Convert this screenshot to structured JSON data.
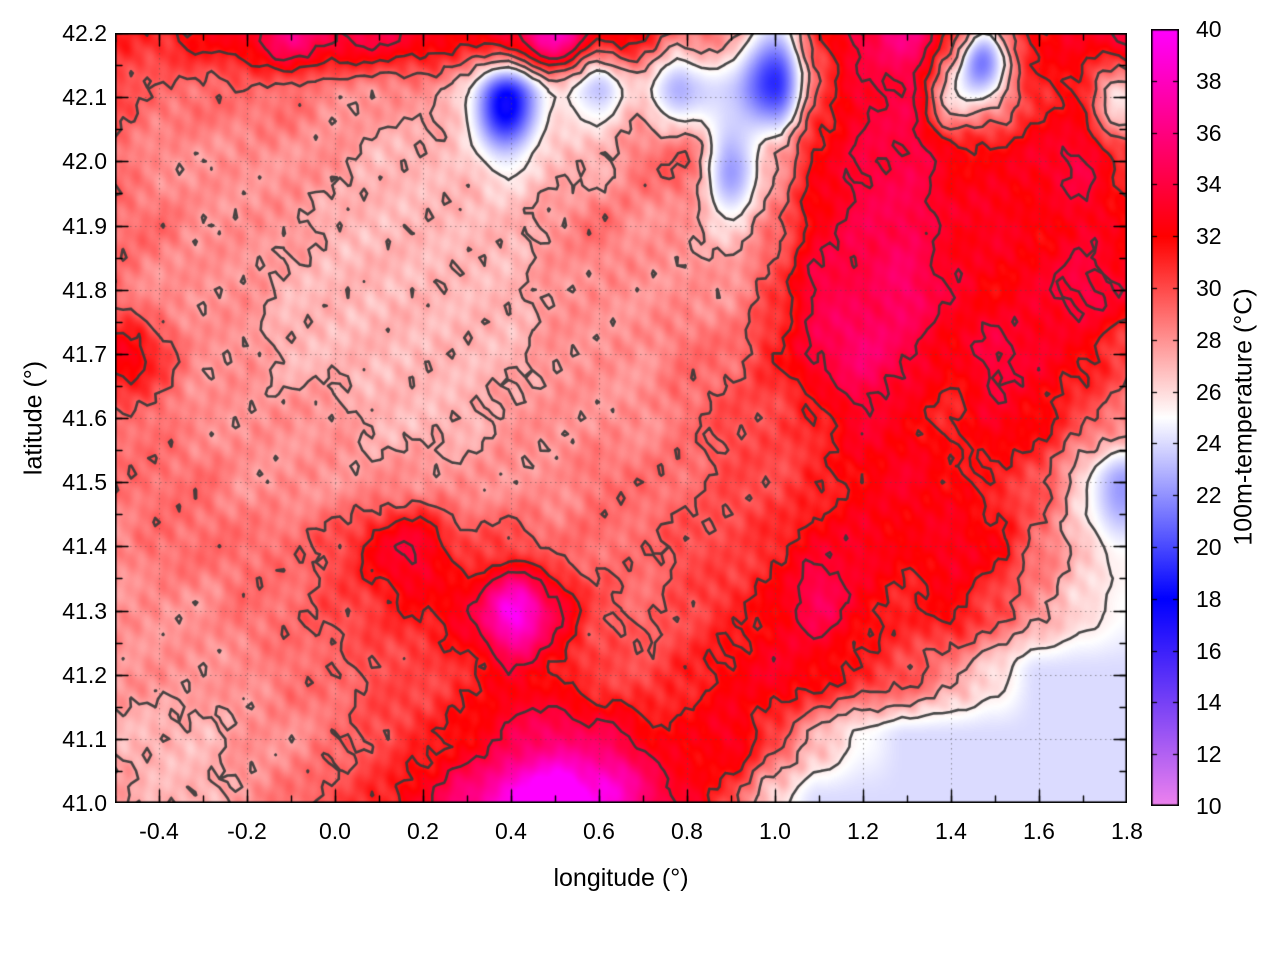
{
  "figure": {
    "background": "#ffffff",
    "border_color": "#000000"
  },
  "axes": {
    "xlabel": "longitude (°)",
    "ylabel": "latitude (°)",
    "xrange": [
      -0.5,
      1.8
    ],
    "yrange": [
      41.0,
      42.2
    ],
    "xtick_values": [
      -0.4,
      -0.2,
      0.0,
      0.2,
      0.4,
      0.6,
      0.8,
      1.0,
      1.2,
      1.4,
      1.6,
      1.8
    ],
    "xtick_labels": [
      "-0.4",
      "-0.2",
      "0.0",
      "0.2",
      "0.4",
      "0.6",
      "0.8",
      "1.0",
      "1.2",
      "1.4",
      "1.6",
      "1.8"
    ],
    "ytick_values": [
      42.2,
      42.1,
      42.0,
      41.9,
      41.8,
      41.7,
      41.6,
      41.5,
      41.4,
      41.3,
      41.2,
      41.1,
      41.0
    ],
    "ytick_labels": [
      "42.2",
      "42.1",
      "42.0",
      "41.9",
      "41.8",
      "41.7",
      "41.6",
      "41.5",
      "41.4",
      "41.3",
      "41.2",
      "41.1",
      "41.0"
    ],
    "x_minor_step": 0.1,
    "y_minor_step": 0.05,
    "grid": "dotted",
    "grid_color": "#787878"
  },
  "colorbar": {
    "label": "100m-temperature (°C)",
    "range": [
      10,
      40
    ],
    "tick_values": [
      10,
      12,
      14,
      16,
      18,
      20,
      22,
      24,
      26,
      28,
      30,
      32,
      34,
      36,
      38,
      40
    ],
    "tick_labels": [
      "10",
      "12",
      "14",
      "16",
      "18",
      "20",
      "22",
      "24",
      "26",
      "28",
      "30",
      "32",
      "34",
      "36",
      "38",
      "40"
    ],
    "palette": [
      {
        "value": 10,
        "color": "#ee82ee"
      },
      {
        "value": 18,
        "color": "#0000ff"
      },
      {
        "value": 25,
        "color": "#ffffff"
      },
      {
        "value": 32,
        "color": "#ff0000"
      },
      {
        "value": 40,
        "color": "#ff00ff"
      }
    ]
  },
  "chart_data": {
    "type": "heatmap",
    "title": "",
    "xlabel": "longitude (°)",
    "ylabel": "latitude (°)",
    "value_label": "100m-temperature (°C)",
    "value_range": [
      10,
      40
    ],
    "x": [
      -0.5,
      -0.4,
      -0.3,
      -0.2,
      -0.1,
      0.0,
      0.1,
      0.2,
      0.3,
      0.4,
      0.5,
      0.6,
      0.7,
      0.8,
      0.9,
      1.0,
      1.1,
      1.2,
      1.3,
      1.4,
      1.5,
      1.6,
      1.7,
      1.8
    ],
    "y": [
      42.2,
      42.1,
      42.0,
      41.9,
      41.8,
      41.7,
      41.6,
      41.5,
      41.4,
      41.3,
      41.2,
      41.1,
      41.0
    ],
    "values": [
      [
        31,
        31,
        32,
        33,
        36,
        34,
        34,
        33,
        32,
        34,
        38,
        34,
        33,
        31,
        29,
        28,
        32,
        34,
        36,
        32,
        30,
        32,
        33,
        35
      ],
      [
        30,
        29,
        29,
        29,
        29,
        28,
        28,
        28,
        27,
        23,
        26,
        25,
        28,
        26,
        25,
        24,
        31,
        33,
        33,
        26,
        28,
        31,
        33,
        29
      ],
      [
        29,
        28,
        28,
        28,
        28,
        28,
        27,
        27,
        27,
        26,
        27,
        27,
        29,
        30,
        25,
        28,
        32,
        33,
        32,
        31,
        32,
        33,
        34,
        31
      ],
      [
        29,
        29,
        28,
        28,
        28,
        27,
        27,
        27,
        27,
        27,
        28,
        29,
        28,
        28,
        27,
        29,
        32,
        33,
        33,
        32,
        33,
        32,
        33,
        32
      ],
      [
        29,
        28,
        28,
        28,
        27,
        27,
        27,
        27,
        27,
        27,
        28,
        28,
        28,
        28,
        28,
        30,
        33,
        32,
        34,
        33,
        32,
        33,
        34,
        33
      ],
      [
        31,
        30,
        28,
        28,
        27,
        27,
        27,
        27,
        27,
        27,
        28,
        28,
        28,
        29,
        29,
        31,
        33,
        34,
        33,
        32,
        34,
        33,
        32,
        30
      ],
      [
        29,
        29,
        28,
        28,
        28,
        28,
        27,
        27,
        27,
        28,
        28,
        28,
        28,
        29,
        30,
        30,
        31,
        33,
        32,
        31,
        33,
        32,
        30,
        29
      ],
      [
        29,
        29,
        29,
        28,
        28,
        28,
        28,
        28,
        28,
        28,
        28,
        29,
        29,
        29,
        30,
        30,
        31,
        32,
        33,
        32,
        31,
        30,
        27,
        25
      ],
      [
        28,
        29,
        29,
        29,
        29,
        30,
        31,
        32,
        30,
        30,
        29,
        29,
        29,
        30,
        30,
        31,
        32,
        33,
        32,
        33,
        32,
        29,
        27,
        26
      ],
      [
        28,
        28,
        28,
        29,
        29,
        30,
        30,
        31,
        33,
        36,
        33,
        30,
        29,
        30,
        31,
        32,
        33,
        32,
        31,
        32,
        30,
        28,
        26,
        25
      ],
      [
        28,
        28,
        28,
        28,
        29,
        29,
        30,
        30,
        31,
        32,
        31,
        30,
        30,
        31,
        32,
        33,
        32,
        31,
        30,
        28,
        26,
        24,
        24,
        24
      ],
      [
        27,
        27,
        27,
        28,
        28,
        29,
        30,
        31,
        32,
        33,
        33,
        32,
        31,
        32,
        33,
        30,
        27,
        25,
        24,
        24,
        24,
        24,
        24,
        24
      ],
      [
        28,
        27,
        27,
        28,
        29,
        30,
        31,
        33,
        36,
        38,
        38,
        36,
        34,
        33,
        30,
        26,
        24,
        24,
        24,
        24,
        24,
        24,
        24,
        24
      ]
    ],
    "anomaly_spots": [
      {
        "lon": 0.38,
        "lat": 42.08,
        "sigma": 0.05,
        "delta": -6
      },
      {
        "lon": 1.0,
        "lat": 42.15,
        "sigma": 0.06,
        "delta": -6
      },
      {
        "lon": 1.47,
        "lat": 42.16,
        "sigma": 0.04,
        "delta": -8
      },
      {
        "lon": 0.77,
        "lat": 42.14,
        "sigma": 0.06,
        "delta": -4
      },
      {
        "lon": 0.6,
        "lat": 42.15,
        "sigma": 0.04,
        "delta": -3
      },
      {
        "lon": 0.9,
        "lat": 41.97,
        "sigma": 0.05,
        "delta": -3
      },
      {
        "lon": 1.76,
        "lat": 42.1,
        "sigma": 0.05,
        "delta": -4
      },
      {
        "lon": 1.78,
        "lat": 41.48,
        "sigma": 0.06,
        "delta": -3
      },
      {
        "lon": 0.42,
        "lat": 41.29,
        "sigma": 0.05,
        "delta": 4
      },
      {
        "lon": 0.5,
        "lat": 41.02,
        "sigma": 0.08,
        "delta": 4
      },
      {
        "lon": 1.2,
        "lat": 41.78,
        "sigma": 0.1,
        "delta": 2
      },
      {
        "lon": 1.33,
        "lat": 42.0,
        "sigma": 0.08,
        "delta": 2
      },
      {
        "lon": -0.46,
        "lat": 41.69,
        "sigma": 0.04,
        "delta": 2
      },
      {
        "lon": 0.15,
        "lat": 41.38,
        "sigma": 0.06,
        "delta": 2
      },
      {
        "lon": 1.1,
        "lat": 41.33,
        "sigma": 0.05,
        "delta": 2
      },
      {
        "lon": 0.65,
        "lat": 41.05,
        "sigma": 0.06,
        "delta": 3
      }
    ],
    "contour_levels": [
      25.5,
      27.5,
      29.5,
      31.5,
      33.5
    ],
    "contour_color": "#3a3a3a"
  }
}
